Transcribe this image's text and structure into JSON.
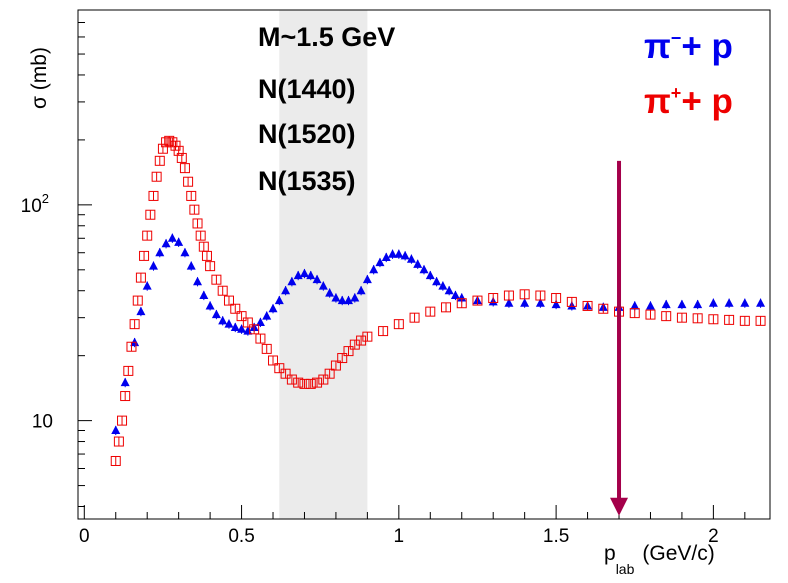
{
  "chart_data": {
    "type": "scatter",
    "xlabel_main": "p",
    "xlabel_sub": "lab",
    "xlabel_unit": "(GeV/c)",
    "ylabel": "σ (mb)",
    "xlim": [
      -0.02,
      2.18
    ],
    "ylim": [
      3.5,
      800
    ],
    "y_scale": "log",
    "x_ticks": [
      {
        "value": 0,
        "label": "0"
      },
      {
        "value": 0.5,
        "label": "0.5"
      },
      {
        "value": 1,
        "label": "1"
      },
      {
        "value": 1.5,
        "label": "1.5"
      },
      {
        "value": 2,
        "label": "2"
      }
    ],
    "y_ticks": [
      {
        "value": 10,
        "label_base": "10",
        "label_exp": ""
      },
      {
        "value": 100,
        "label_base": "10",
        "label_exp": "2"
      }
    ],
    "shaded_band": {
      "x_from": 0.62,
      "x_to": 0.9,
      "color": "#ebebeb"
    },
    "annotation_lines": [
      "M~1.5 GeV",
      "N(1440)",
      "N(1520)",
      "N(1535)"
    ],
    "arrow": {
      "x": 1.7,
      "y_from": 160,
      "y_to": 3.7,
      "color": "#a4004a"
    },
    "series": [
      {
        "name_base": "π",
        "name_charge": "−",
        "name_rest": "+ p",
        "color": "#0000ee",
        "marker": "triangle",
        "x": [
          0.1,
          0.13,
          0.16,
          0.18,
          0.2,
          0.22,
          0.24,
          0.26,
          0.28,
          0.3,
          0.32,
          0.34,
          0.36,
          0.38,
          0.4,
          0.42,
          0.44,
          0.46,
          0.48,
          0.5,
          0.52,
          0.54,
          0.56,
          0.58,
          0.6,
          0.62,
          0.64,
          0.66,
          0.68,
          0.7,
          0.72,
          0.74,
          0.76,
          0.78,
          0.8,
          0.82,
          0.84,
          0.86,
          0.88,
          0.9,
          0.92,
          0.94,
          0.96,
          0.98,
          1.0,
          1.02,
          1.04,
          1.06,
          1.08,
          1.1,
          1.12,
          1.14,
          1.16,
          1.18,
          1.2,
          1.25,
          1.3,
          1.35,
          1.4,
          1.45,
          1.5,
          1.55,
          1.6,
          1.65,
          1.7,
          1.75,
          1.8,
          1.85,
          1.9,
          1.95,
          2.0,
          2.05,
          2.1,
          2.15
        ],
        "y": [
          9,
          15,
          23,
          32,
          42,
          52,
          60,
          66,
          70,
          67,
          60,
          52,
          44,
          38,
          34,
          31,
          29,
          28,
          27,
          26.5,
          26,
          27,
          28.5,
          30.5,
          33,
          36,
          40,
          44,
          47,
          48,
          47,
          45,
          42,
          39,
          37,
          36,
          36,
          37,
          40,
          45,
          50,
          54,
          57,
          59,
          59,
          58,
          56,
          53,
          50,
          47,
          44,
          42,
          40,
          38,
          37,
          36,
          35.5,
          35,
          35,
          35,
          34.5,
          34,
          34,
          33.5,
          33.5,
          34,
          34,
          34.5,
          34.5,
          34.5,
          35,
          35,
          35,
          35
        ]
      },
      {
        "name_base": "π",
        "name_charge": "+",
        "name_rest": "+ p",
        "color": "#ee0000",
        "marker": "open-square",
        "x": [
          0.1,
          0.11,
          0.12,
          0.13,
          0.14,
          0.15,
          0.16,
          0.17,
          0.18,
          0.19,
          0.2,
          0.21,
          0.22,
          0.23,
          0.24,
          0.25,
          0.26,
          0.27,
          0.28,
          0.29,
          0.3,
          0.31,
          0.32,
          0.33,
          0.34,
          0.35,
          0.36,
          0.37,
          0.38,
          0.39,
          0.4,
          0.42,
          0.44,
          0.46,
          0.48,
          0.5,
          0.52,
          0.54,
          0.56,
          0.58,
          0.6,
          0.62,
          0.64,
          0.66,
          0.68,
          0.7,
          0.72,
          0.74,
          0.76,
          0.78,
          0.8,
          0.82,
          0.84,
          0.86,
          0.88,
          0.9,
          0.95,
          1.0,
          1.05,
          1.1,
          1.15,
          1.2,
          1.25,
          1.3,
          1.35,
          1.4,
          1.45,
          1.5,
          1.55,
          1.6,
          1.65,
          1.7,
          1.75,
          1.8,
          1.85,
          1.9,
          1.95,
          2.0,
          2.05,
          2.1,
          2.15
        ],
        "y": [
          6.5,
          8,
          10,
          13,
          17,
          22,
          28,
          36,
          46,
          58,
          72,
          90,
          110,
          135,
          160,
          182,
          195,
          198,
          195,
          188,
          178,
          165,
          148,
          128,
          110,
          95,
          82,
          72,
          64,
          58,
          52,
          45,
          40,
          36,
          33,
          30.5,
          28.5,
          26.5,
          24,
          21.5,
          19,
          17.5,
          16.5,
          15.5,
          15,
          14.8,
          14.8,
          15,
          15.5,
          16.5,
          18,
          19.5,
          21,
          22.5,
          23.5,
          24.5,
          26,
          28,
          30,
          32,
          33.5,
          35,
          36,
          37,
          38,
          38.5,
          38,
          37,
          35.5,
          34,
          33,
          32,
          31.5,
          31,
          30.5,
          30,
          29.8,
          29.5,
          29.3,
          29,
          29
        ]
      }
    ]
  }
}
